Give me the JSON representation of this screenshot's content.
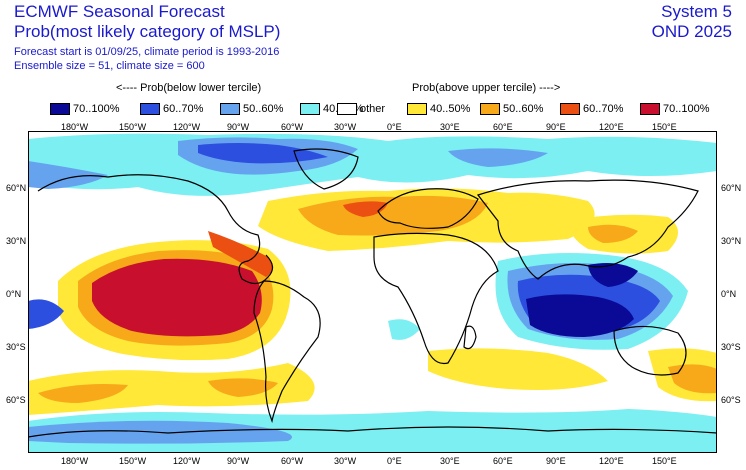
{
  "header": {
    "title": "ECMWF Seasonal Forecast",
    "subtitle": "Prob(most likely category of MSLP)",
    "forecast_line": "Forecast start is 01/09/25, climate period is 1993-2016",
    "ensemble_line": "Ensemble size = 51, climate size = 600",
    "system": "System 5",
    "season": "OND 2025"
  },
  "legend": {
    "below_header": "<---- Prob(below lower tercile)",
    "above_header": "Prob(above upper tercile) ---->",
    "items": [
      {
        "label": "70..100%",
        "color": "#0a0a96"
      },
      {
        "label": "60..70%",
        "color": "#2d4fe0"
      },
      {
        "label": "50..60%",
        "color": "#66a3ee"
      },
      {
        "label": "40..50%",
        "color": "#7beff2"
      },
      {
        "label": "other",
        "color": "#ffffff"
      },
      {
        "label": "40..50%",
        "color": "#ffe838"
      },
      {
        "label": "50..60%",
        "color": "#f7a91a"
      },
      {
        "label": "60..70%",
        "color": "#ec4f12"
      },
      {
        "label": "70..100%",
        "color": "#c8102e"
      }
    ]
  },
  "map": {
    "lon_labels": [
      "180°W",
      "150°W",
      "120°W",
      "90°W",
      "60°W",
      "30°W",
      "0°E",
      "30°E",
      "60°E",
      "90°E",
      "120°E",
      "150°E"
    ],
    "lat_labels": [
      "60°N",
      "30°N",
      "0°N",
      "30°S",
      "60°S"
    ]
  }
}
